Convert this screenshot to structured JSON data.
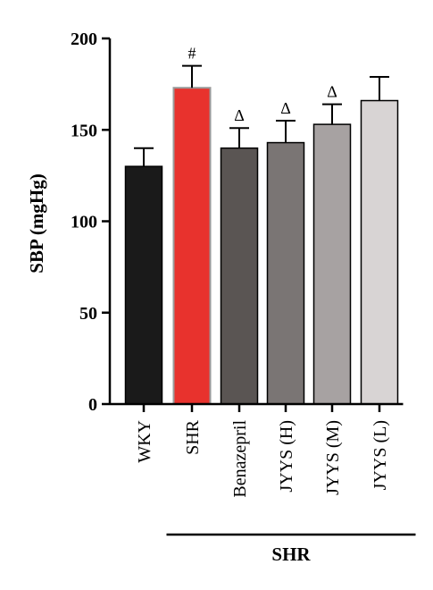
{
  "chart_data": {
    "type": "bar",
    "title": "",
    "ylabel": "SBP (mgHg)",
    "xlabel": "",
    "ylim": [
      0,
      200
    ],
    "yticks": [
      0,
      50,
      100,
      150,
      200
    ],
    "categories": [
      "WKY",
      "SHR",
      "Benazepril",
      "JYYS (H)",
      "JYYS (M)",
      "JYYS (L)"
    ],
    "values": [
      130,
      173,
      140,
      143,
      153,
      166
    ],
    "errors": [
      10,
      12,
      11,
      12,
      11,
      13
    ],
    "annotations": [
      "",
      "#",
      "Δ",
      "Δ",
      "Δ",
      ""
    ],
    "colors": [
      "#1a1a1a",
      "#e8322d",
      "#5a5553",
      "#7a7574",
      "#a7a2a2",
      "#d8d4d4"
    ],
    "group": {
      "label": "SHR",
      "from_index": 1,
      "to_index": 5
    }
  }
}
